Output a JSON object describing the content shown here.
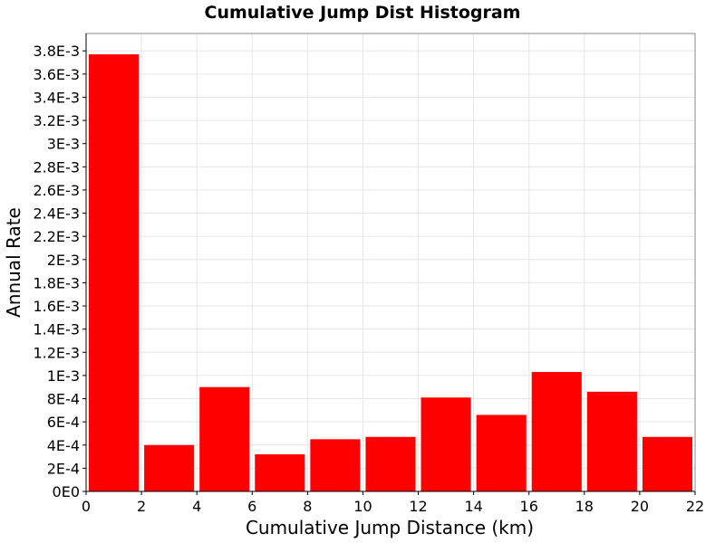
{
  "chart_data": {
    "type": "bar",
    "title": "Cumulative Jump Dist Histogram",
    "xlabel": "Cumulative Jump Distance (km)",
    "ylabel": "Annual Rate",
    "xlim": [
      0,
      22
    ],
    "ylim": [
      0,
      0.00395
    ],
    "grid": true,
    "legend": "none",
    "bar_color": "#ff0000",
    "bin_width": 2,
    "bins": [
      {
        "x_start": 0,
        "x_end": 2,
        "value": 0.00377
      },
      {
        "x_start": 2,
        "x_end": 4,
        "value": 0.0004
      },
      {
        "x_start": 4,
        "x_end": 6,
        "value": 0.0009
      },
      {
        "x_start": 6,
        "x_end": 8,
        "value": 0.00032
      },
      {
        "x_start": 8,
        "x_end": 10,
        "value": 0.00045
      },
      {
        "x_start": 10,
        "x_end": 12,
        "value": 0.00047
      },
      {
        "x_start": 12,
        "x_end": 14,
        "value": 0.00081
      },
      {
        "x_start": 14,
        "x_end": 16,
        "value": 0.00066
      },
      {
        "x_start": 16,
        "x_end": 18,
        "value": 0.00103
      },
      {
        "x_start": 18,
        "x_end": 20,
        "value": 0.00086
      },
      {
        "x_start": 20,
        "x_end": 22,
        "value": 0.00047
      }
    ],
    "x_ticks": [
      0,
      2,
      4,
      6,
      8,
      10,
      12,
      14,
      16,
      18,
      20,
      22
    ],
    "x_tick_labels": [
      "0",
      "2",
      "4",
      "6",
      "8",
      "10",
      "12",
      "14",
      "16",
      "18",
      "20",
      "22"
    ],
    "y_ticks": [
      0,
      0.0002,
      0.0004,
      0.0006,
      0.0008,
      0.001,
      0.0012,
      0.0014,
      0.0016,
      0.0018,
      0.002,
      0.0022,
      0.0024,
      0.0026,
      0.0028,
      0.003,
      0.0032,
      0.0034,
      0.0036,
      0.0038
    ],
    "y_tick_labels": [
      "0E0",
      "2E-4",
      "4E-4",
      "6E-4",
      "8E-4",
      "1E-3",
      "1.2E-3",
      "1.4E-3",
      "1.6E-3",
      "1.8E-3",
      "2E-3",
      "2.2E-3",
      "2.4E-3",
      "2.6E-3",
      "2.8E-3",
      "3E-3",
      "3.2E-3",
      "3.4E-3",
      "3.6E-3",
      "3.8E-3"
    ]
  }
}
